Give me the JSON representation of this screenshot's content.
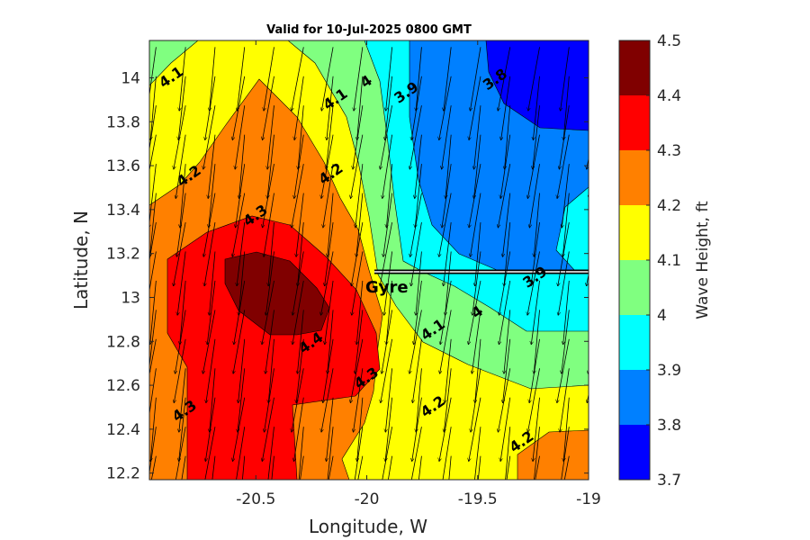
{
  "chart_data": {
    "type": "heatmap",
    "subtype": "filled-contour with wind vectors",
    "title": "Valid for 10-Jul-2025 0800 GMT",
    "xlabel": "Longitude, W",
    "ylabel": "Latitude, N",
    "xlim": [
      -20.98,
      -19.0
    ],
    "ylim": [
      12.17,
      14.17
    ],
    "xticks": [
      -20.5,
      -20,
      -19.5,
      -19
    ],
    "xtick_labels": [
      "-20.5",
      "-20",
      "-19.5",
      "-19"
    ],
    "yticks": [
      12.2,
      12.4,
      12.6,
      12.8,
      13.0,
      13.2,
      13.4,
      13.6,
      13.8,
      14.0
    ],
    "ytick_labels": [
      "12.2",
      "12.4",
      "12.6",
      "12.8",
      "13",
      "13.2",
      "13.4",
      "13.6",
      "13.8",
      "14"
    ],
    "colorbar": {
      "label": "Wave Height, ft",
      "levels": [
        3.7,
        3.8,
        3.9,
        4.0,
        4.1,
        4.2,
        4.3,
        4.4,
        4.5
      ],
      "tick_labels": [
        "3.7",
        "3.8",
        "3.9",
        "4",
        "4.1",
        "4.2",
        "4.3",
        "4.4",
        "4.5"
      ],
      "colors": [
        "#0000ff",
        "#0080ff",
        "#00ffff",
        "#80ff80",
        "#ffff00",
        "#ff8000",
        "#ff0000",
        "#800000"
      ]
    },
    "contour_labels": [
      {
        "text": "4.1",
        "lon": -20.88,
        "lat": 14.0
      },
      {
        "text": "4.1",
        "lon": -20.14,
        "lat": 13.9
      },
      {
        "text": "4",
        "lon": -20.0,
        "lat": 13.98
      },
      {
        "text": "3.9",
        "lon": -19.82,
        "lat": 13.93
      },
      {
        "text": "3.8",
        "lon": -19.42,
        "lat": 13.99
      },
      {
        "text": "4.2",
        "lon": -20.8,
        "lat": 13.55
      },
      {
        "text": "4.2",
        "lon": -20.16,
        "lat": 13.56
      },
      {
        "text": "4.3",
        "lon": -20.5,
        "lat": 13.37
      },
      {
        "text": "3.9",
        "lon": -19.24,
        "lat": 13.09
      },
      {
        "text": "4",
        "lon": -19.5,
        "lat": 12.93
      },
      {
        "text": "4.1",
        "lon": -19.7,
        "lat": 12.85
      },
      {
        "text": "4.4",
        "lon": -20.25,
        "lat": 12.79
      },
      {
        "text": "4.3",
        "lon": -20.0,
        "lat": 12.63
      },
      {
        "text": "4.2",
        "lon": -19.7,
        "lat": 12.5
      },
      {
        "text": "4.3",
        "lon": -20.82,
        "lat": 12.48
      },
      {
        "text": "4.2",
        "lon": -19.3,
        "lat": 12.34
      }
    ],
    "marker": {
      "text": "Gyre",
      "lon": -20.0,
      "lat": 13.11,
      "track_to_lon": -19.0
    },
    "vectors": {
      "description": "wind arrows on regular grid, pointing mostly south-southwest",
      "lon_start": -20.95,
      "lon_step": 0.133,
      "lat_start": 14.14,
      "lat_step": -0.133,
      "dlon": -0.04,
      "dlat": -0.29
    }
  }
}
